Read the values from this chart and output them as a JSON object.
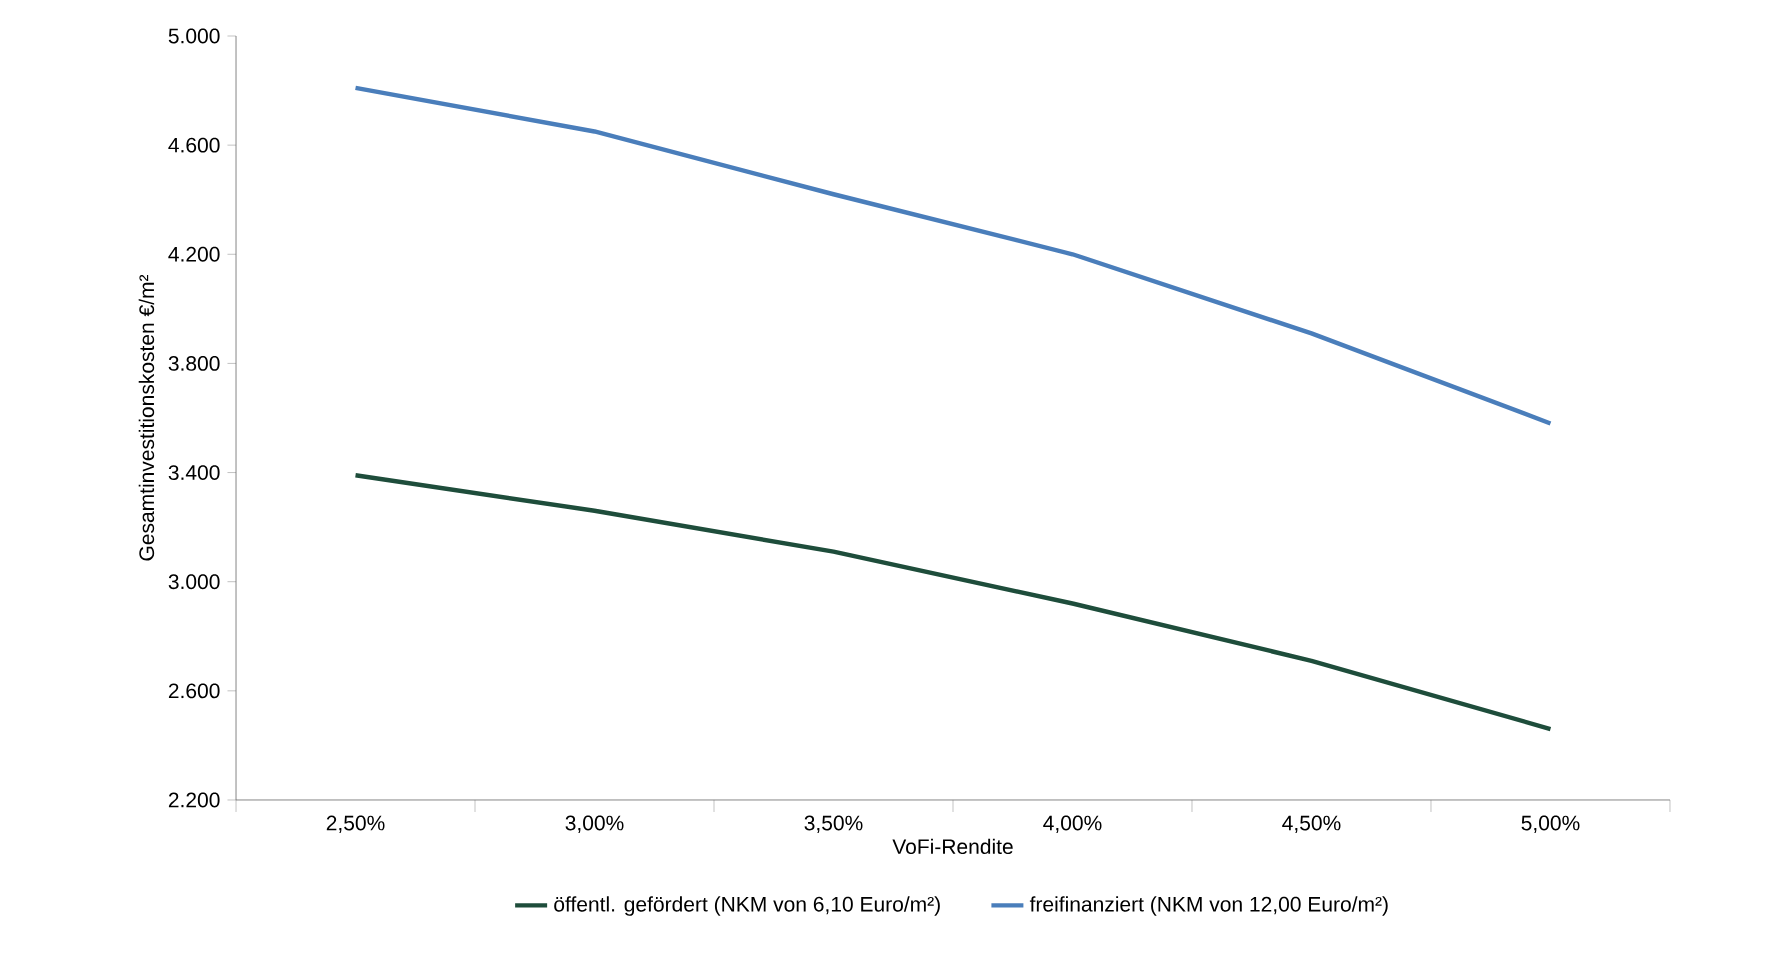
{
  "chart_data": {
    "type": "line",
    "xlabel": "VoFi-Rendite",
    "ylabel": "Gesamtinvestitionskosten  €/m²",
    "categories": [
      "2,50%",
      "3,00%",
      "3,50%",
      "4,00%",
      "4,50%",
      "5,00%"
    ],
    "series": [
      {
        "name": "öffentl. gefördert (NKM von 6,10 Euro/m²)",
        "color": "#1e4d3b",
        "values": [
          3390,
          3260,
          3110,
          2920,
          2710,
          2460
        ]
      },
      {
        "name": "freifinanziert (NKM von 12,00 Euro/m²)",
        "color": "#4a7ebb",
        "values": [
          4810,
          4650,
          4420,
          4200,
          3910,
          3580
        ]
      }
    ],
    "ylim": [
      2200,
      5000
    ],
    "yticks": [
      {
        "value": 2200,
        "label": "2.200"
      },
      {
        "value": 2600,
        "label": "2.600"
      },
      {
        "value": 3000,
        "label": "3.000"
      },
      {
        "value": 3400,
        "label": "3.400"
      },
      {
        "value": 3800,
        "label": "3.800"
      },
      {
        "value": 4200,
        "label": "4.200"
      },
      {
        "value": 4600,
        "label": "4.600"
      },
      {
        "value": 5000,
        "label": "5.000"
      }
    ],
    "grid": false,
    "legend": "bottom",
    "marker": "none",
    "line_style": "solid"
  }
}
